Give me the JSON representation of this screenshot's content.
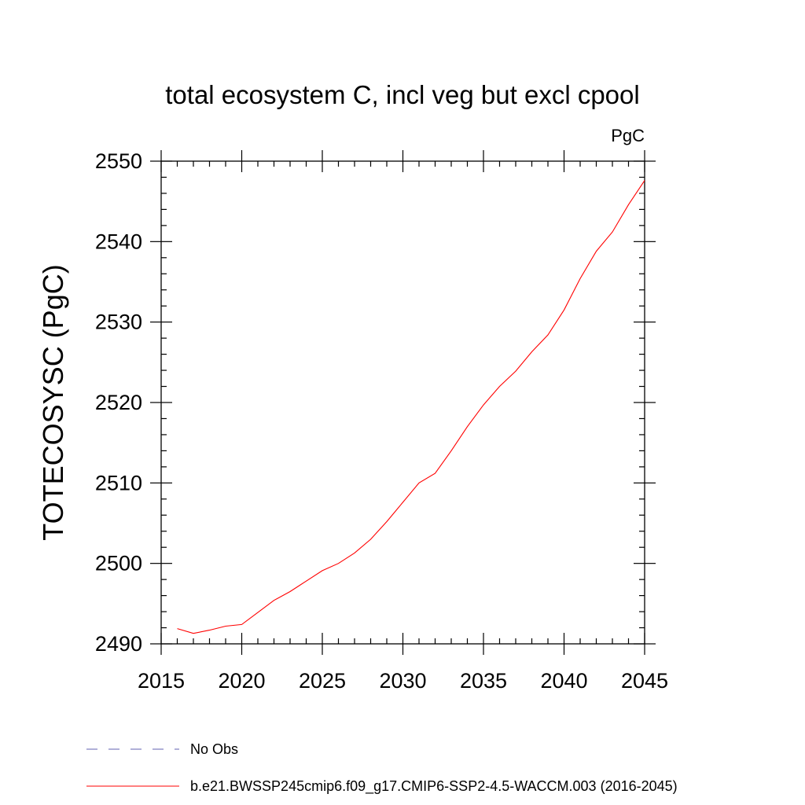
{
  "chart_data": {
    "type": "line",
    "title": "total ecosystem C, incl veg but excl cpool",
    "units": "PgC",
    "xlabel": "",
    "ylabel": "TOTECOSYSC  (PgC)",
    "xlim": [
      2015,
      2045
    ],
    "ylim": [
      2490,
      2550
    ],
    "x_ticks": [
      2015,
      2020,
      2025,
      2030,
      2035,
      2040,
      2045
    ],
    "y_ticks": [
      2490,
      2500,
      2510,
      2520,
      2530,
      2540,
      2550
    ],
    "x_tick_labels": [
      "2015",
      "2020",
      "2025",
      "2030",
      "2035",
      "2040",
      "2045"
    ],
    "y_tick_labels": [
      "2490",
      "2500",
      "2510",
      "2520",
      "2530",
      "2540",
      "2550"
    ],
    "series": [
      {
        "name": "b.e21.BWSSP245cmip6.f09_g17.CMIP6-SSP2-4.5-WACCM.003 (2016-2045)",
        "color": "#ff0000",
        "x": [
          2016,
          2017,
          2018,
          2019,
          2020,
          2021,
          2022,
          2023,
          2024,
          2025,
          2026,
          2027,
          2028,
          2029,
          2030,
          2031,
          2032,
          2033,
          2034,
          2035,
          2036,
          2037,
          2038,
          2039,
          2040,
          2041,
          2042,
          2043,
          2044,
          2045
        ],
        "values": [
          2491.9,
          2491.3,
          2491.7,
          2492.2,
          2492.4,
          2493.9,
          2495.4,
          2496.5,
          2497.8,
          2499.1,
          2500.0,
          2501.3,
          2503.0,
          2505.2,
          2507.6,
          2510.0,
          2511.2,
          2514.0,
          2517.0,
          2519.7,
          2522.0,
          2523.9,
          2526.3,
          2528.4,
          2531.5,
          2535.4,
          2538.8,
          2541.2,
          2544.6,
          2547.6
        ]
      }
    ],
    "legend": [
      {
        "label": "No Obs",
        "style": "dashed",
        "color": "#6060b0"
      },
      {
        "label": "b.e21.BWSSP245cmip6.f09_g17.CMIP6-SSP2-4.5-WACCM.003 (2016-2045)",
        "style": "solid",
        "color": "#ff0000"
      }
    ]
  }
}
